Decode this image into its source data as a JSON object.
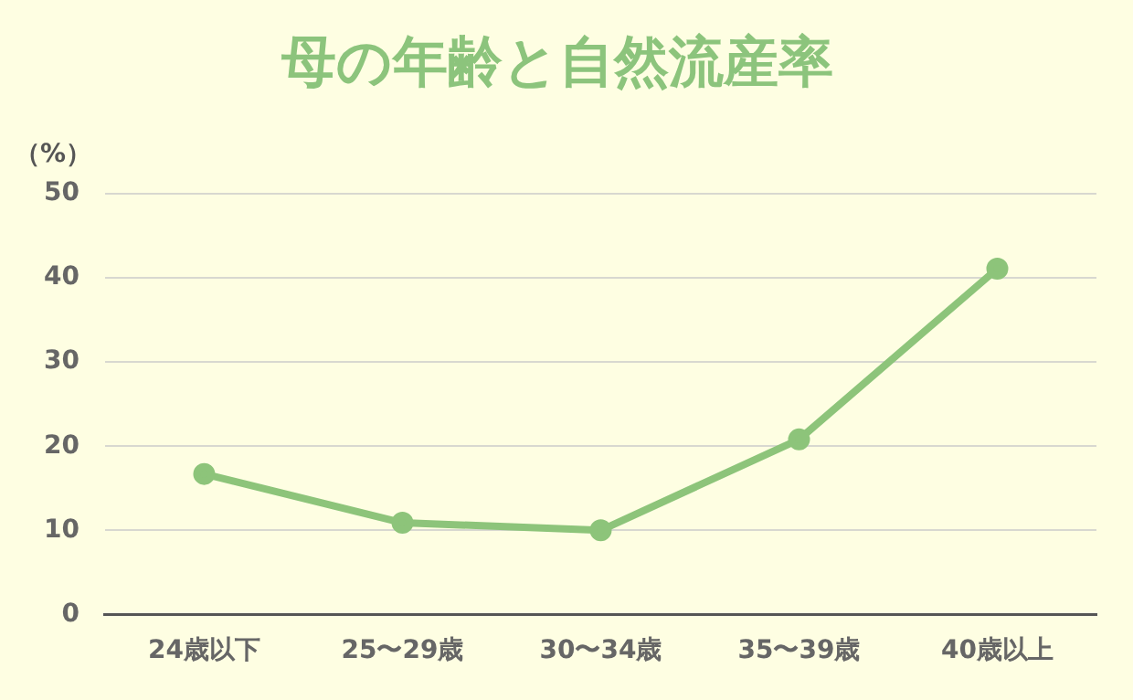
{
  "chart_data": {
    "type": "line",
    "title": "母の年齢と自然流産率",
    "ylabel": "（%）",
    "categories": [
      "24歳以下",
      "25〜29歳",
      "30〜34歳",
      "35〜39歳",
      "40歳以上"
    ],
    "series": [
      {
        "color": "#8dc47a",
        "values": [
          16.7,
          10.9,
          10.0,
          20.8,
          41.1
        ]
      }
    ],
    "ylim": [
      0,
      50
    ],
    "yticks": [
      0,
      10,
      20,
      30,
      40,
      50
    ],
    "grid": "y",
    "legend": false,
    "marker": "circle",
    "line_style": "solid"
  }
}
